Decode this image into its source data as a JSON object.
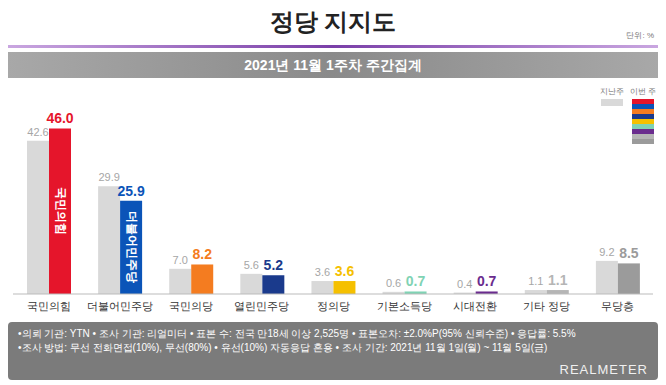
{
  "unit_note": "단위: %",
  "chart_data": {
    "type": "bar",
    "title": "정당 지지도",
    "subtitle": "2021년 11월 1주차 주간집계",
    "categories": [
      "국민의힘",
      "더불어민주당",
      "국민의당",
      "열린민주당",
      "정의당",
      "기본소득당",
      "시대전환",
      "기타 정당",
      "무당층"
    ],
    "series": [
      {
        "name": "지난주",
        "color": "#d9d9d9",
        "values": [
          42.6,
          29.9,
          7.0,
          5.6,
          3.6,
          0.6,
          0.4,
          1.1,
          9.2
        ],
        "value_labels": [
          "42.6",
          "29.9",
          "7.0",
          "5.6",
          "3.6",
          "0.6",
          "0.4",
          "1.1",
          "9.2"
        ]
      },
      {
        "name": "이번 주",
        "colors": [
          "#e5152b",
          "#0b54b8",
          "#f47c20",
          "#1a3a8c",
          "#f5c000",
          "#7fd3b4",
          "#6a2c8e",
          "#b5b5b5",
          "#9b9b9b"
        ],
        "values": [
          46.0,
          25.9,
          8.2,
          5.2,
          3.6,
          0.7,
          0.7,
          1.1,
          8.5
        ],
        "value_labels": [
          "46.0",
          "25.9",
          "8.2",
          "5.2",
          "3.6",
          "0.7",
          "0.7",
          "1.1",
          "8.5"
        ],
        "bar_texts": [
          "국민의힘",
          "더불어민주당",
          null,
          null,
          null,
          null,
          null,
          null,
          null
        ]
      }
    ],
    "ylim": [
      0,
      50
    ],
    "data_labels": true,
    "tick_labels": "x",
    "grid": false
  },
  "notes": [
    "•의뢰 기관: YTN • 조사 기관: 리얼미터 • 표본 수: 전국 만18세 이상 2,525명 • 표본오차: ±2.0%P(95% 신뢰수준) • 응답률: 5.5%",
    "•조사 방법: 무선 전화면접(10%), 무선(80%) • 유선(10%) 자동응답 혼용 • 조사 기간: 2021년 11월 1일(월) ~ 11월 5일(금)"
  ],
  "brand": "REALMETER"
}
